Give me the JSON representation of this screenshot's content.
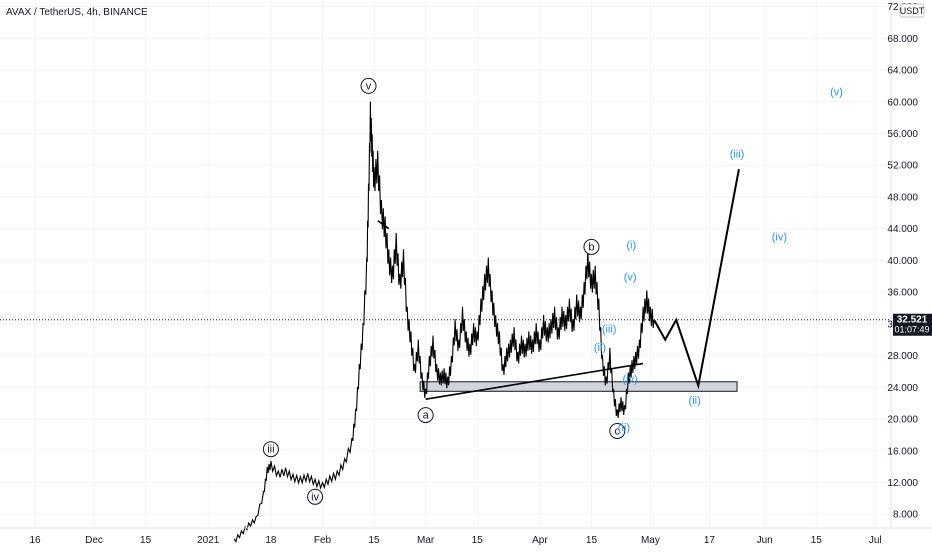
{
  "chart_data": {
    "type": "candlestick",
    "symbol_title": "AVAX / TetherUS, 4h, BINANCE",
    "currency_badge": "USDT",
    "last_price": "32.521",
    "countdown": "01:07:49",
    "y_ticks": [
      "72.000",
      "68.000",
      "64.000",
      "60.000",
      "56.000",
      "52.000",
      "48.000",
      "44.000",
      "40.000",
      "36.000",
      "32.000",
      "28.000",
      "24.000",
      "20.000",
      "16.000",
      "12.000",
      "8.000"
    ],
    "ylim": [
      4.5,
      72.5
    ],
    "x_ticks": [
      {
        "label": "16",
        "day": -16
      },
      {
        "label": "Dec",
        "day": 0
      },
      {
        "label": "15",
        "day": 14
      },
      {
        "label": "2021",
        "day": 31
      },
      {
        "label": "18",
        "day": 48
      },
      {
        "label": "Feb",
        "day": 62
      },
      {
        "label": "15",
        "day": 76
      },
      {
        "label": "Mar",
        "day": 90
      },
      {
        "label": "15",
        "day": 104
      },
      {
        "label": "Apr",
        "day": 121
      },
      {
        "label": "15",
        "day": 135
      },
      {
        "label": "May",
        "day": 151
      },
      {
        "label": "17",
        "day": 167
      },
      {
        "label": "Jun",
        "day": 182
      },
      {
        "label": "15",
        "day": 196
      },
      {
        "label": "Jul",
        "day": 212
      }
    ],
    "price_path": [
      [
        38.0,
        4.6
      ],
      [
        40,
        5.6
      ],
      [
        42,
        6.6
      ],
      [
        44,
        7.4
      ],
      [
        46,
        10.5
      ],
      [
        47,
        13.5
      ],
      [
        48,
        14.2
      ],
      [
        50,
        13.0
      ],
      [
        52,
        13.4
      ],
      [
        54,
        12.6
      ],
      [
        56,
        12.3
      ],
      [
        58,
        12.7
      ],
      [
        60,
        12.0
      ],
      [
        62,
        11.6
      ],
      [
        64,
        12.4
      ],
      [
        66,
        13.0
      ],
      [
        68,
        14.5
      ],
      [
        70,
        17.0
      ],
      [
        71,
        20.5
      ],
      [
        72,
        26.0
      ],
      [
        73,
        31.0
      ],
      [
        74,
        39.0
      ],
      [
        74.5,
        48.0
      ],
      [
        75,
        58.0
      ],
      [
        75.5,
        54.0
      ],
      [
        76,
        50.0
      ],
      [
        77,
        52.0
      ],
      [
        78,
        46.0
      ],
      [
        79,
        44.0
      ],
      [
        80,
        40.0
      ],
      [
        81,
        38.0
      ],
      [
        82,
        42.0
      ],
      [
        83,
        37.0
      ],
      [
        84,
        40.0
      ],
      [
        85,
        33.0
      ],
      [
        86,
        30.0
      ],
      [
        87,
        26.0
      ],
      [
        88,
        29.0
      ],
      [
        89,
        25.0
      ],
      [
        90,
        23.0
      ],
      [
        91,
        27.0
      ],
      [
        92,
        29.5
      ],
      [
        93,
        26.0
      ],
      [
        94,
        25.0
      ],
      [
        95,
        25.5
      ],
      [
        96,
        24.5
      ],
      [
        97,
        27.0
      ],
      [
        98,
        31.5
      ],
      [
        99,
        29.0
      ],
      [
        100,
        33.0
      ],
      [
        101,
        30.0
      ],
      [
        102,
        28.5
      ],
      [
        103,
        31.0
      ],
      [
        104,
        30.0
      ],
      [
        105,
        34.0
      ],
      [
        106,
        37.0
      ],
      [
        107,
        39.0
      ],
      [
        108,
        35.0
      ],
      [
        109,
        32.0
      ],
      [
        110,
        30.0
      ],
      [
        111,
        26.0
      ],
      [
        112,
        28.0
      ],
      [
        113,
        29.0
      ],
      [
        114,
        30.5
      ],
      [
        115,
        27.5
      ],
      [
        116,
        29.5
      ],
      [
        117,
        28.5
      ],
      [
        118,
        30.0
      ],
      [
        119,
        29.0
      ],
      [
        120,
        31.0
      ],
      [
        121,
        29.0
      ],
      [
        122,
        32.0
      ],
      [
        123,
        30.5
      ],
      [
        124,
        31.5
      ],
      [
        125,
        33.0
      ],
      [
        126,
        30.5
      ],
      [
        127,
        33.0
      ],
      [
        128,
        32.0
      ],
      [
        129,
        34.0
      ],
      [
        130,
        31.5
      ],
      [
        131,
        34.5
      ],
      [
        132,
        33.0
      ],
      [
        133,
        36.0
      ],
      [
        134,
        40.0
      ],
      [
        135,
        37.0
      ],
      [
        136,
        38.0
      ],
      [
        137,
        34.0
      ],
      [
        138,
        27.0
      ],
      [
        139,
        24.5
      ],
      [
        140,
        28.0
      ],
      [
        141,
        23.0
      ],
      [
        142,
        20.5
      ],
      [
        143,
        22.0
      ],
      [
        144,
        21.0
      ],
      [
        145,
        25.0
      ],
      [
        146,
        26.5
      ],
      [
        147,
        27.5
      ],
      [
        148,
        29.0
      ],
      [
        149,
        33.0
      ],
      [
        150,
        35.0
      ],
      [
        151,
        33.0
      ],
      [
        152,
        32.5
      ]
    ],
    "projection": [
      [
        152,
        32.5
      ],
      [
        155,
        30.0
      ],
      [
        158,
        32.5
      ],
      [
        164,
        24.2
      ],
      [
        175,
        51.5
      ]
    ],
    "triangle": [
      [
        90,
        22.5
      ],
      [
        149,
        27.0
      ]
    ],
    "triangle_upper": [
      [
        77,
        45.0
      ],
      [
        80,
        44.0
      ]
    ],
    "support_zone": [
      23.5,
      24.7,
      88.5,
      174.5
    ],
    "last_price_value": 32.521,
    "wave_labels": [
      {
        "text": "v",
        "day": 74.5,
        "price": 62.0,
        "style": "circle"
      },
      {
        "text": "iii",
        "day": 48,
        "price": 16.2,
        "style": "circle"
      },
      {
        "text": "iv",
        "day": 60,
        "price": 10.2,
        "style": "circle"
      },
      {
        "text": "a",
        "day": 90,
        "price": 20.5,
        "style": "circle"
      },
      {
        "text": "b",
        "day": 135,
        "price": 41.7,
        "style": "circle"
      },
      {
        "text": "c",
        "day": 142,
        "price": 18.5,
        "style": "circle"
      },
      {
        "text": "(i)",
        "day": 145.8,
        "price": 42.0,
        "style": "blue"
      },
      {
        "text": "(v)",
        "day": 145.5,
        "price": 38.0,
        "style": "blue"
      },
      {
        "text": "(iii)",
        "day": 139.8,
        "price": 31.4,
        "style": "blue"
      },
      {
        "text": "(ii)",
        "day": 137.3,
        "price": 29.1,
        "style": "blue"
      },
      {
        "text": "(iv)",
        "day": 145.5,
        "price": 25.1,
        "style": "blue"
      },
      {
        "text": "(ii)",
        "day": 143.8,
        "price": 19.0,
        "style": "blue"
      },
      {
        "text": "(ii)",
        "day": 163,
        "price": 22.4,
        "style": "blue"
      },
      {
        "text": "(iii)",
        "day": 174.5,
        "price": 53.5,
        "style": "blue"
      },
      {
        "text": "(iv)",
        "day": 186,
        "price": 43.0,
        "style": "blue"
      },
      {
        "text": "(v)",
        "day": 201.5,
        "price": 61.3,
        "style": "blue"
      }
    ]
  }
}
